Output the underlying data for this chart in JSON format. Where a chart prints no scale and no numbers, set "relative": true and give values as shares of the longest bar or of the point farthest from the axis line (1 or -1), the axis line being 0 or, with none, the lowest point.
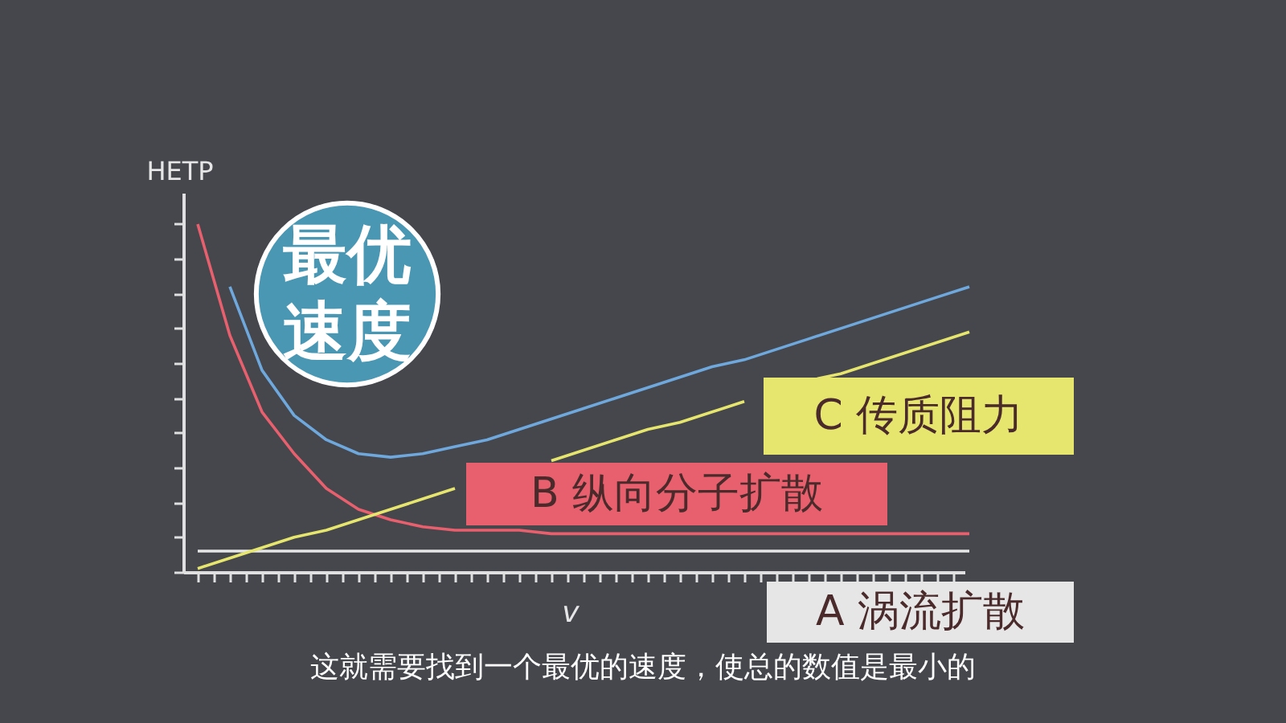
{
  "chart_data": {
    "type": "line",
    "relative": true,
    "xlabel": "v",
    "ylabel": "HETP",
    "tick_labels": false,
    "categories": [
      null,
      null,
      null,
      null,
      null,
      null,
      null,
      null,
      null,
      null,
      null,
      null,
      null,
      null,
      null,
      null,
      null,
      null,
      null,
      null,
      null,
      null,
      null,
      null,
      null
    ],
    "series": [
      {
        "name": "A 涡流扩散",
        "color": "#e6e6e6",
        "values": [
          0.06,
          0.06,
          0.06,
          0.06,
          0.06,
          0.06,
          0.06,
          0.06,
          0.06,
          0.06,
          0.06,
          0.06,
          0.06,
          0.06,
          0.06,
          0.06,
          0.06,
          0.06,
          0.06,
          0.06,
          0.06,
          0.06,
          0.06,
          0.06,
          0.06
        ]
      },
      {
        "name": "B 纵向分子扩散",
        "color": "#e8606e",
        "values": [
          1.0,
          0.68,
          0.46,
          0.34,
          0.24,
          0.18,
          0.15,
          0.13,
          0.12,
          0.12,
          0.12,
          0.11,
          0.11,
          0.11,
          0.11,
          0.11,
          0.11,
          0.11,
          0.11,
          0.11,
          0.11,
          0.11,
          0.11,
          0.11,
          0.11
        ]
      },
      {
        "name": "C 传质阻力",
        "color": "#e6e66e",
        "values": [
          0.01,
          0.04,
          0.07,
          0.1,
          0.12,
          0.15,
          0.18,
          0.21,
          0.24,
          null,
          null,
          0.32,
          0.35,
          0.38,
          0.41,
          0.43,
          0.46,
          0.49,
          null,
          0.55,
          0.57,
          0.6,
          0.63,
          0.66,
          0.69
        ]
      },
      {
        "color": "#6fa8dc",
        "values": [
          null,
          0.82,
          0.58,
          0.45,
          0.38,
          0.34,
          0.33,
          0.34,
          0.36,
          0.38,
          0.41,
          0.44,
          0.47,
          0.5,
          0.53,
          0.56,
          0.59,
          0.61,
          0.64,
          0.67,
          0.7,
          0.73,
          0.76,
          0.79,
          0.82
        ]
      }
    ],
    "annotations": [
      "最优速度",
      "这就需要找到一个最优的速度，使总的数值是最小的"
    ]
  }
}
